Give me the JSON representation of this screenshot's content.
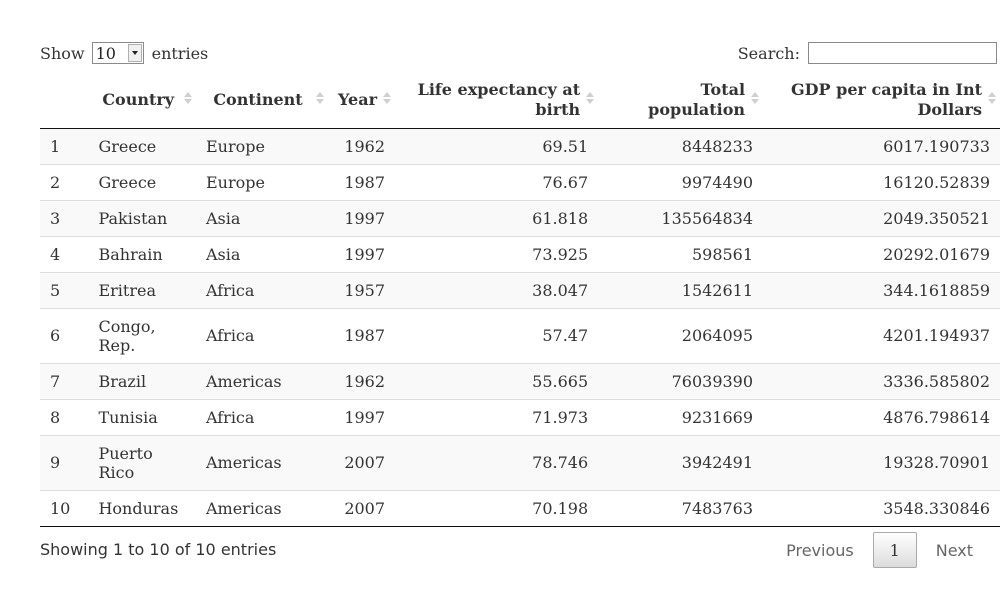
{
  "controls": {
    "show_label": "Show",
    "entries_label": "entries",
    "page_length_selected": "10",
    "search_label": "Search:",
    "search_value": ""
  },
  "table": {
    "columns": [
      "",
      "Country",
      "Continent",
      "Year",
      "Life expectancy at birth",
      "Total population",
      "GDP per capita in Int Dollars"
    ],
    "rows": [
      [
        "1",
        "Greece",
        "Europe",
        "1962",
        "69.51",
        "8448233",
        "6017.190733"
      ],
      [
        "2",
        "Greece",
        "Europe",
        "1987",
        "76.67",
        "9974490",
        "16120.52839"
      ],
      [
        "3",
        "Pakistan",
        "Asia",
        "1997",
        "61.818",
        "135564834",
        "2049.350521"
      ],
      [
        "4",
        "Bahrain",
        "Asia",
        "1997",
        "73.925",
        "598561",
        "20292.01679"
      ],
      [
        "5",
        "Eritrea",
        "Africa",
        "1957",
        "38.047",
        "1542611",
        "344.1618859"
      ],
      [
        "6",
        "Congo, Rep.",
        "Africa",
        "1987",
        "57.47",
        "2064095",
        "4201.194937"
      ],
      [
        "7",
        "Brazil",
        "Americas",
        "1962",
        "55.665",
        "76039390",
        "3336.585802"
      ],
      [
        "8",
        "Tunisia",
        "Africa",
        "1997",
        "71.973",
        "9231669",
        "4876.798614"
      ],
      [
        "9",
        "Puerto Rico",
        "Americas",
        "2007",
        "78.746",
        "3942491",
        "19328.70901"
      ],
      [
        "10",
        "Honduras",
        "Americas",
        "2007",
        "70.198",
        "7483763",
        "3548.330846"
      ]
    ]
  },
  "footer": {
    "info": "Showing 1 to 10 of 10 entries",
    "previous_label": "Previous",
    "current_page": "1",
    "next_label": "Next"
  },
  "icons": {
    "sort": "sort-both-icon",
    "select_arrow": "chevron-down-icon"
  }
}
